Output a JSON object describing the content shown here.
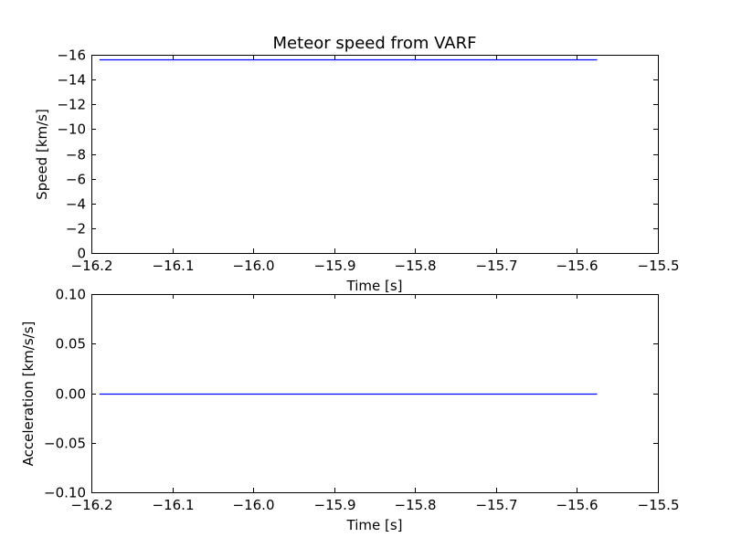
{
  "chart_data": [
    {
      "type": "line",
      "title": "Meteor speed from  VARF",
      "xlabel": "Time [s]",
      "ylabel": "Speed [km/s]",
      "xlim": [
        -16.2,
        -15.5
      ],
      "ylim": [
        0,
        -16
      ],
      "y_inverted": true,
      "grid": false,
      "x_ticks": [
        -16.2,
        -16.1,
        -16.0,
        -15.9,
        -15.8,
        -15.7,
        -15.6,
        -15.5
      ],
      "x_tick_labels": [
        "−16.2",
        "−16.1",
        "−16.0",
        "−15.9",
        "−15.8",
        "−15.7",
        "−15.6",
        "−15.5"
      ],
      "y_ticks": [
        -16,
        -14,
        -12,
        -10,
        -8,
        -6,
        -4,
        -2,
        0
      ],
      "y_tick_labels": [
        "−16",
        "−14",
        "−12",
        "−10",
        "−8",
        "−6",
        "−4",
        "−2",
        "0"
      ],
      "series": [
        {
          "color": "#0000ff",
          "x": [
            -16.19,
            -15.575
          ],
          "y": [
            -15.6,
            -15.6
          ]
        }
      ]
    },
    {
      "type": "line",
      "title": "",
      "xlabel": "Time [s]",
      "ylabel": "Acceleration [km/s/s]",
      "xlim": [
        -16.2,
        -15.5
      ],
      "ylim": [
        -0.1,
        0.1
      ],
      "y_inverted": false,
      "grid": false,
      "x_ticks": [
        -16.2,
        -16.1,
        -16.0,
        -15.9,
        -15.8,
        -15.7,
        -15.6,
        -15.5
      ],
      "x_tick_labels": [
        "−16.2",
        "−16.1",
        "−16.0",
        "−15.9",
        "−15.8",
        "−15.7",
        "−15.6",
        "−15.5"
      ],
      "y_ticks": [
        0.1,
        0.05,
        0.0,
        -0.05,
        -0.1
      ],
      "y_tick_labels": [
        "0.10",
        "0.05",
        "0.00",
        "−0.05",
        "−0.10"
      ],
      "series": [
        {
          "color": "#0000ff",
          "x": [
            -16.19,
            -15.575
          ],
          "y": [
            0.0,
            0.0
          ]
        }
      ]
    }
  ]
}
